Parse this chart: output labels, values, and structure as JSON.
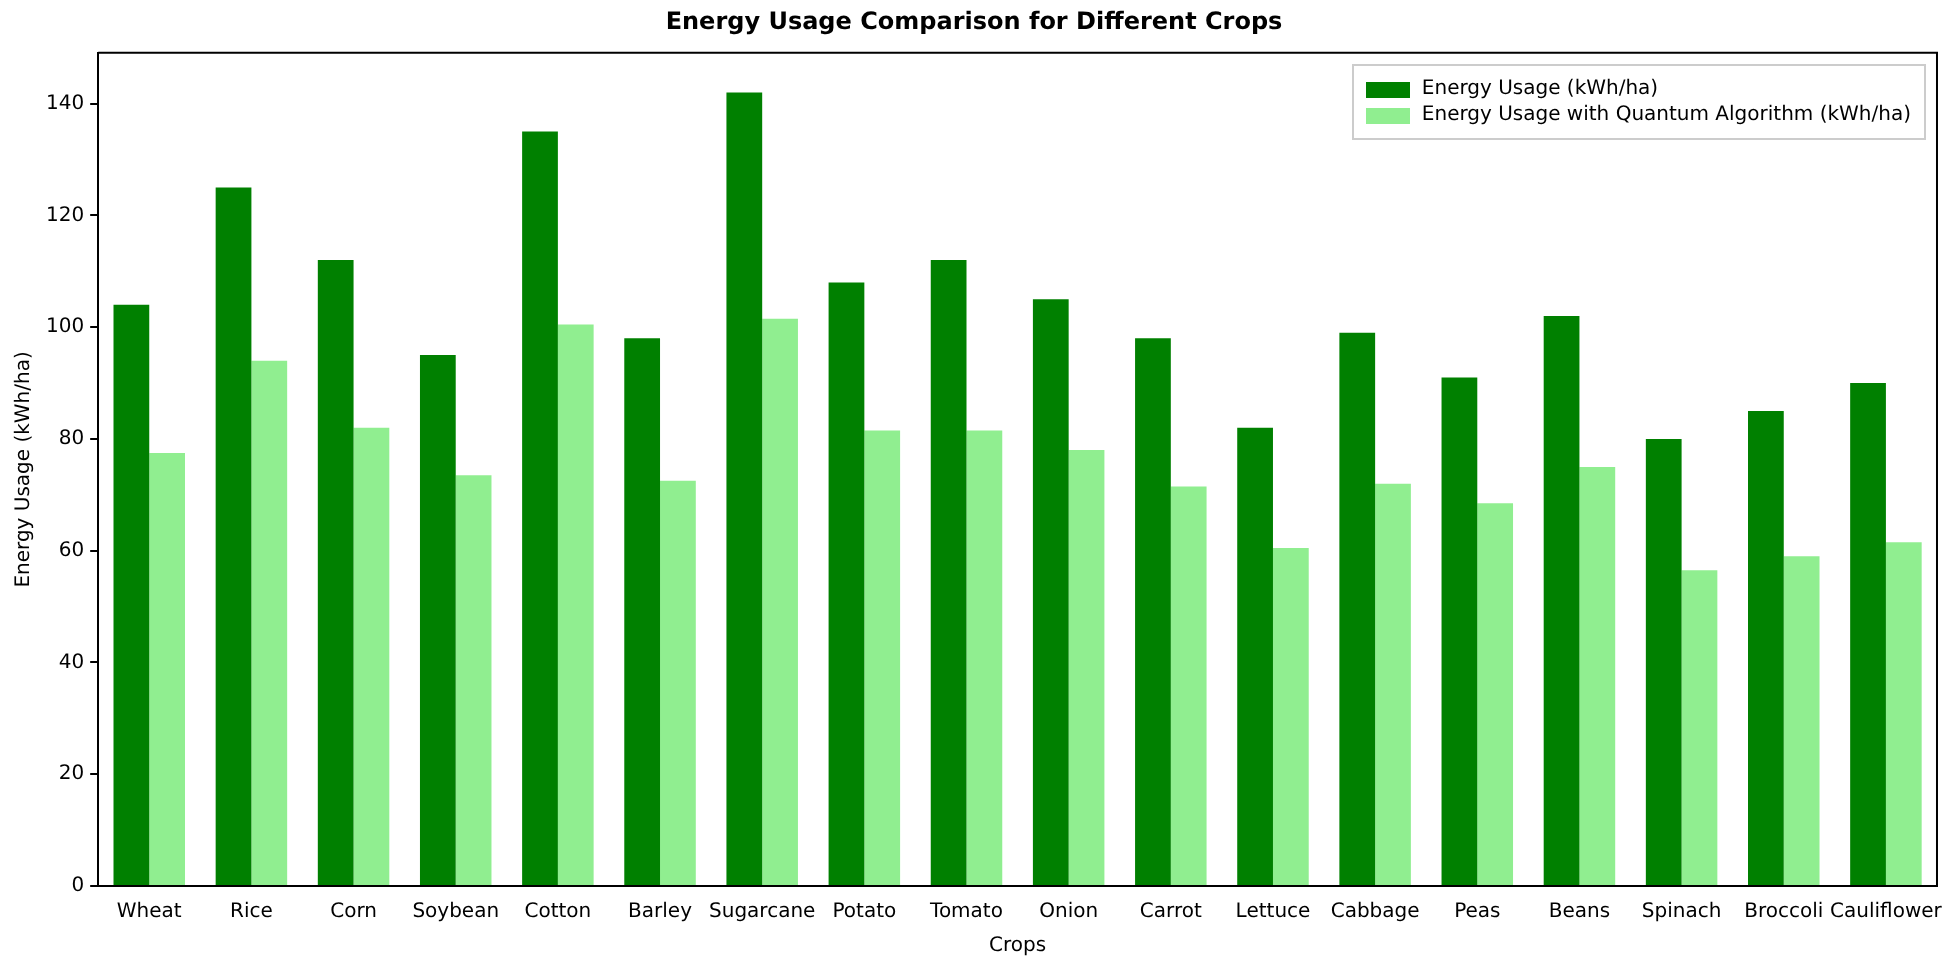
{
  "chart_data": {
    "type": "bar",
    "title": "Energy Usage Comparison for Different Crops",
    "xlabel": "Crops",
    "ylabel": "Energy Usage (kWh/ha)",
    "categories": [
      "Wheat",
      "Rice",
      "Corn",
      "Soybean",
      "Cotton",
      "Barley",
      "Sugarcane",
      "Potato",
      "Tomato",
      "Onion",
      "Carrot",
      "Lettuce",
      "Cabbage",
      "Peas",
      "Beans",
      "Spinach",
      "Broccoli",
      "Cauliflower"
    ],
    "series": [
      {
        "name": "Energy Usage (kWh/ha)",
        "color": "#008000",
        "values": [
          104,
          125,
          112,
          95,
          135,
          98,
          142,
          108,
          112,
          105,
          98,
          82,
          99,
          91,
          102,
          80,
          85,
          90
        ]
      },
      {
        "name": "Energy Usage with Quantum Algorithm (kWh/ha)",
        "color": "#90ee90",
        "values": [
          77.5,
          94,
          82,
          73.5,
          100.5,
          72.5,
          101.5,
          81.5,
          81.5,
          78,
          71.5,
          60.5,
          72,
          68.5,
          75,
          56.5,
          59,
          61.5
        ]
      }
    ],
    "ylim": [
      0,
      149.1
    ],
    "yticks": [
      0,
      20,
      40,
      60,
      80,
      100,
      120,
      140
    ],
    "grid": false,
    "legend": "top right"
  }
}
